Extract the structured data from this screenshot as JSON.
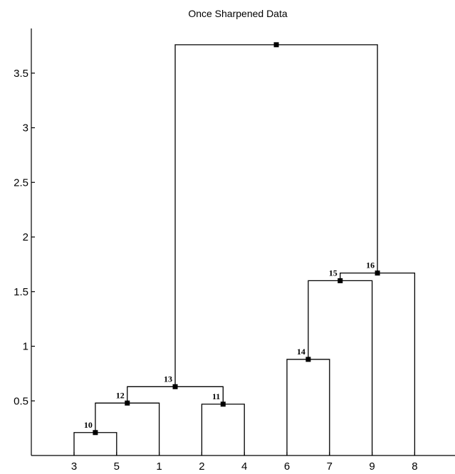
{
  "chart_data": {
    "type": "dendrogram",
    "title": "Once Sharpened Data",
    "xlabel": "",
    "ylabel": "",
    "ylim": [
      0,
      4.0
    ],
    "yticks": [
      0.5,
      1,
      1.5,
      2,
      2.5,
      3,
      3.5
    ],
    "ytick_labels": [
      "0.5",
      "1",
      "1.5",
      "2",
      "2.5",
      "3",
      "3.5"
    ],
    "leaf_order": [
      "3",
      "5",
      "1",
      "2",
      "4",
      "6",
      "7",
      "9",
      "8"
    ],
    "merges": [
      {
        "id": "10",
        "left": "3",
        "right": "5",
        "height": 0.21
      },
      {
        "id": "11",
        "left": "2",
        "right": "4",
        "height": 0.47
      },
      {
        "id": "12",
        "left": "10",
        "right": "1",
        "height": 0.48
      },
      {
        "id": "13",
        "left": "12",
        "right": "11",
        "height": 0.63
      },
      {
        "id": "14",
        "left": "6",
        "right": "7",
        "height": 0.88
      },
      {
        "id": "15",
        "left": "14",
        "right": "9",
        "height": 1.6
      },
      {
        "id": "16",
        "left": "15",
        "right": "8",
        "height": 1.67
      },
      {
        "id": "",
        "left": "13",
        "right": "16",
        "height": 3.76
      }
    ]
  }
}
